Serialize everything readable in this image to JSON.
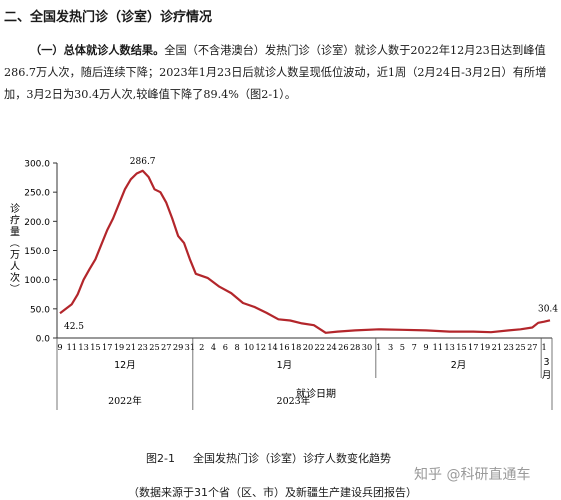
{
  "document": {
    "heading": "二、全国发热门诊（诊室）诊疗情况",
    "paragraph_lead": "（一）总体就诊人数结果。",
    "paragraph_body": "全国（不含港澳台）发热门诊（诊室）就诊人数于2022年12月23日达到峰值286.7万人次，随后连续下降；2023年1月23日后就诊人数呈现低位波动，近1周（2月24日-3月2日）有所增加，3月2日为30.4万人次,较峰值下降了89.4%（图2-1）。",
    "figure_number": "图2-1",
    "figure_caption": "全国发热门诊（诊室）诊疗人数变化趋势",
    "figure_source": "（数据来源于31个省（区、市）及新疆生产建设兵团报告）",
    "watermark": "知乎 @科研直通车"
  },
  "chart_data": {
    "type": "line",
    "ylabel": "诊疗量（万人次）",
    "xlabel": "就诊日期",
    "ylim": [
      0,
      300
    ],
    "yticks": [
      "0.0",
      "50.0",
      "100.0",
      "150.0",
      "200.0",
      "250.0",
      "300.0"
    ],
    "line_color": "#b3262b",
    "month_labels": [
      "12月",
      "1月",
      "2月",
      "3月"
    ],
    "year_labels": [
      "2022年",
      "2023年"
    ],
    "day_tick_labels": [
      "9",
      "11",
      "13",
      "15",
      "17",
      "19",
      "21",
      "23",
      "25",
      "27",
      "29",
      "31",
      "2",
      "4",
      "6",
      "8",
      "10",
      "12",
      "14",
      "16",
      "18",
      "20",
      "22",
      "24",
      "26",
      "28",
      "30",
      "1",
      "3",
      "5",
      "7",
      "9",
      "11",
      "13",
      "15",
      "17",
      "19",
      "21",
      "23",
      "25",
      "27",
      "1"
    ],
    "annotations": [
      "42.5",
      "286.7",
      "30.4"
    ],
    "series": [
      {
        "values": [
          {
            "x": "2022-12-09",
            "y": 42.5
          },
          {
            "x": "2022-12-11",
            "y": 58
          },
          {
            "x": "2022-12-12",
            "y": 75
          },
          {
            "x": "2022-12-13",
            "y": 100
          },
          {
            "x": "2022-12-14",
            "y": 118
          },
          {
            "x": "2022-12-15",
            "y": 135
          },
          {
            "x": "2022-12-16",
            "y": 160
          },
          {
            "x": "2022-12-17",
            "y": 185
          },
          {
            "x": "2022-12-18",
            "y": 205
          },
          {
            "x": "2022-12-19",
            "y": 230
          },
          {
            "x": "2022-12-20",
            "y": 255
          },
          {
            "x": "2022-12-21",
            "y": 272
          },
          {
            "x": "2022-12-22",
            "y": 282
          },
          {
            "x": "2022-12-23",
            "y": 286.7
          },
          {
            "x": "2022-12-24",
            "y": 276
          },
          {
            "x": "2022-12-25",
            "y": 255
          },
          {
            "x": "2022-12-26",
            "y": 250
          },
          {
            "x": "2022-12-27",
            "y": 232
          },
          {
            "x": "2022-12-28",
            "y": 205
          },
          {
            "x": "2022-12-29",
            "y": 175
          },
          {
            "x": "2022-12-30",
            "y": 163
          },
          {
            "x": "2022-12-31",
            "y": 135
          },
          {
            "x": "2023-01-01",
            "y": 110
          },
          {
            "x": "2023-01-03",
            "y": 103
          },
          {
            "x": "2023-01-05",
            "y": 88
          },
          {
            "x": "2023-01-07",
            "y": 77
          },
          {
            "x": "2023-01-09",
            "y": 60
          },
          {
            "x": "2023-01-11",
            "y": 53
          },
          {
            "x": "2023-01-13",
            "y": 43
          },
          {
            "x": "2023-01-15",
            "y": 32
          },
          {
            "x": "2023-01-17",
            "y": 30
          },
          {
            "x": "2023-01-19",
            "y": 25
          },
          {
            "x": "2023-01-21",
            "y": 22
          },
          {
            "x": "2023-01-23",
            "y": 9
          },
          {
            "x": "2023-01-25",
            "y": 11
          },
          {
            "x": "2023-01-28",
            "y": 13
          },
          {
            "x": "2023-02-01",
            "y": 15
          },
          {
            "x": "2023-02-05",
            "y": 14
          },
          {
            "x": "2023-02-09",
            "y": 13
          },
          {
            "x": "2023-02-13",
            "y": 11
          },
          {
            "x": "2023-02-17",
            "y": 11
          },
          {
            "x": "2023-02-20",
            "y": 10
          },
          {
            "x": "2023-02-23",
            "y": 13
          },
          {
            "x": "2023-02-25",
            "y": 15
          },
          {
            "x": "2023-02-27",
            "y": 18
          },
          {
            "x": "2023-02-28",
            "y": 26
          },
          {
            "x": "2023-03-01",
            "y": 28
          },
          {
            "x": "2023-03-02",
            "y": 30.4
          }
        ]
      }
    ]
  }
}
